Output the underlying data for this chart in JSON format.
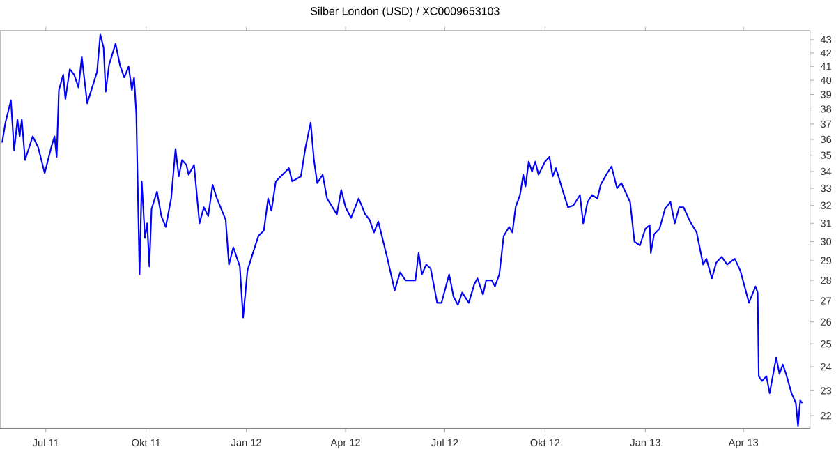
{
  "chart_data": {
    "type": "line",
    "title": "Silber London (USD) / XC0009653103",
    "x": [
      "2011-05-22",
      "2011-05-25",
      "2011-05-30",
      "2011-06-02",
      "2011-06-05",
      "2011-06-07",
      "2011-06-09",
      "2011-06-12",
      "2011-06-19",
      "2011-06-24",
      "2011-06-30",
      "2011-07-06",
      "2011-07-09",
      "2011-07-11",
      "2011-07-13",
      "2011-07-17",
      "2011-07-19",
      "2011-07-23",
      "2011-07-27",
      "2011-07-31",
      "2011-08-03",
      "2011-08-08",
      "2011-08-17",
      "2011-08-20",
      "2011-08-23",
      "2011-08-25",
      "2011-08-28",
      "2011-09-03",
      "2011-09-07",
      "2011-09-11",
      "2011-09-15",
      "2011-09-18",
      "2011-09-20",
      "2011-09-22",
      "2011-09-25",
      "2011-09-27",
      "2011-09-30",
      "2011-10-02",
      "2011-10-04",
      "2011-10-06",
      "2011-10-11",
      "2011-10-15",
      "2011-10-19",
      "2011-10-24",
      "2011-10-28",
      "2011-10-31",
      "2011-11-03",
      "2011-11-07",
      "2011-11-09",
      "2011-11-14",
      "2011-11-19",
      "2011-11-23",
      "2011-11-27",
      "2011-12-01",
      "2011-12-05",
      "2011-12-13",
      "2011-12-16",
      "2011-12-20",
      "2011-12-26",
      "2011-12-29",
      "2012-01-02",
      "2012-01-07",
      "2012-01-12",
      "2012-01-17",
      "2012-01-21",
      "2012-01-24",
      "2012-01-28",
      "2012-02-03",
      "2012-02-09",
      "2012-02-12",
      "2012-02-20",
      "2012-02-24",
      "2012-02-29",
      "2012-03-03",
      "2012-03-06",
      "2012-03-11",
      "2012-03-15",
      "2012-03-24",
      "2012-03-28",
      "2012-04-01",
      "2012-04-06",
      "2012-04-13",
      "2012-04-19",
      "2012-04-23",
      "2012-04-27",
      "2012-05-01",
      "2012-05-09",
      "2012-05-16",
      "2012-05-21",
      "2012-05-26",
      "2012-06-04",
      "2012-06-07",
      "2012-06-10",
      "2012-06-14",
      "2012-06-18",
      "2012-06-24",
      "2012-06-28",
      "2012-07-05",
      "2012-07-09",
      "2012-07-13",
      "2012-07-17",
      "2012-07-23",
      "2012-07-28",
      "2012-07-31",
      "2012-08-05",
      "2012-08-08",
      "2012-08-13",
      "2012-08-16",
      "2012-08-20",
      "2012-08-24",
      "2012-08-29",
      "2012-09-01",
      "2012-09-04",
      "2012-09-08",
      "2012-09-11",
      "2012-09-13",
      "2012-09-16",
      "2012-09-19",
      "2012-09-22",
      "2012-09-25",
      "2012-10-01",
      "2012-10-05",
      "2012-10-08",
      "2012-10-11",
      "2012-10-17",
      "2012-10-22",
      "2012-10-27",
      "2012-11-02",
      "2012-11-05",
      "2012-11-09",
      "2012-11-13",
      "2012-11-18",
      "2012-11-21",
      "2012-11-27",
      "2012-12-01",
      "2012-12-06",
      "2012-12-10",
      "2012-12-18",
      "2012-12-22",
      "2012-12-27",
      "2013-01-01",
      "2013-01-05",
      "2013-01-06",
      "2013-01-09",
      "2013-01-14",
      "2013-01-19",
      "2013-01-24",
      "2013-01-28",
      "2013-02-01",
      "2013-02-05",
      "2013-02-11",
      "2013-02-17",
      "2013-02-23",
      "2013-02-26",
      "2013-03-03",
      "2013-03-07",
      "2013-03-12",
      "2013-03-17",
      "2013-03-24",
      "2013-03-29",
      "2013-04-02",
      "2013-04-06",
      "2013-04-12",
      "2013-04-14",
      "2013-04-15",
      "2013-04-18",
      "2013-04-22",
      "2013-04-25",
      "2013-05-01",
      "2013-05-04",
      "2013-05-07",
      "2013-05-10",
      "2013-05-15",
      "2013-05-19",
      "2013-05-21",
      "2013-05-23",
      "2013-05-25"
    ],
    "series": [
      {
        "color": "#0000ff",
        "values": [
          35.8,
          37.1,
          38.6,
          35.3,
          37.3,
          36.2,
          37.3,
          34.7,
          36.2,
          35.5,
          33.9,
          35.5,
          36.2,
          34.9,
          39.3,
          40.4,
          38.7,
          40.8,
          40.4,
          39.5,
          41.7,
          38.4,
          40.6,
          43.4,
          42.4,
          39.2,
          41.1,
          42.7,
          41.1,
          40.2,
          41.0,
          39.3,
          40.2,
          37.7,
          28.3,
          33.4,
          30.2,
          31.0,
          28.7,
          31.8,
          32.8,
          31.4,
          30.8,
          32.4,
          35.4,
          33.7,
          34.7,
          34.4,
          33.8,
          34.4,
          31.0,
          31.9,
          31.4,
          33.2,
          32.4,
          31.2,
          28.8,
          29.7,
          28.7,
          26.2,
          28.5,
          29.4,
          30.3,
          30.6,
          32.4,
          31.7,
          33.4,
          33.8,
          34.2,
          33.4,
          33.7,
          35.4,
          37.1,
          34.7,
          33.3,
          33.8,
          32.4,
          31.5,
          32.9,
          31.9,
          31.3,
          32.4,
          31.5,
          31.2,
          30.5,
          31.1,
          29.2,
          27.5,
          28.4,
          28.0,
          28.0,
          29.4,
          28.3,
          28.8,
          28.6,
          26.9,
          26.9,
          28.3,
          27.2,
          26.8,
          27.4,
          26.9,
          27.8,
          28.1,
          27.3,
          28.0,
          28.0,
          27.7,
          28.3,
          30.3,
          30.8,
          30.5,
          31.9,
          32.6,
          33.8,
          33.1,
          34.6,
          34.0,
          34.6,
          33.8,
          34.6,
          34.9,
          33.7,
          34.2,
          32.9,
          31.9,
          32.0,
          32.6,
          31.0,
          32.2,
          32.6,
          32.4,
          33.2,
          33.9,
          34.3,
          33.0,
          33.3,
          32.2,
          30.0,
          29.8,
          30.7,
          30.9,
          29.4,
          30.4,
          30.7,
          31.8,
          32.2,
          31.0,
          31.9,
          31.9,
          31.1,
          30.5,
          28.8,
          29.1,
          28.1,
          28.9,
          29.2,
          28.8,
          29.1,
          28.5,
          27.7,
          26.9,
          27.7,
          27.4,
          23.6,
          23.4,
          23.6,
          22.9,
          24.4,
          23.7,
          24.1,
          23.7,
          22.9,
          22.5,
          21.6,
          22.6,
          22.5
        ]
      }
    ],
    "log": "y",
    "marker": "none",
    "line_style": "solid",
    "xlim": [
      "2011-05-20",
      "2013-06-01"
    ],
    "xticks": [
      {
        "value": "2011-07-01",
        "label": "Jul 11"
      },
      {
        "value": "2011-10-01",
        "label": "Okt 11"
      },
      {
        "value": "2012-01-01",
        "label": "Jan 12"
      },
      {
        "value": "2012-04-01",
        "label": "Apr 12"
      },
      {
        "value": "2012-07-01",
        "label": "Jul 12"
      },
      {
        "value": "2012-10-01",
        "label": "Okt 12"
      },
      {
        "value": "2013-01-01",
        "label": "Jan 13"
      },
      {
        "value": "2013-04-01",
        "label": "Apr 13"
      }
    ],
    "ylim": [
      21.5,
      43.7
    ],
    "yticks": [
      22,
      23,
      24,
      25,
      26,
      27,
      28,
      29,
      30,
      31,
      32,
      33,
      34,
      35,
      36,
      37,
      38,
      39,
      40,
      41,
      42,
      43
    ]
  }
}
